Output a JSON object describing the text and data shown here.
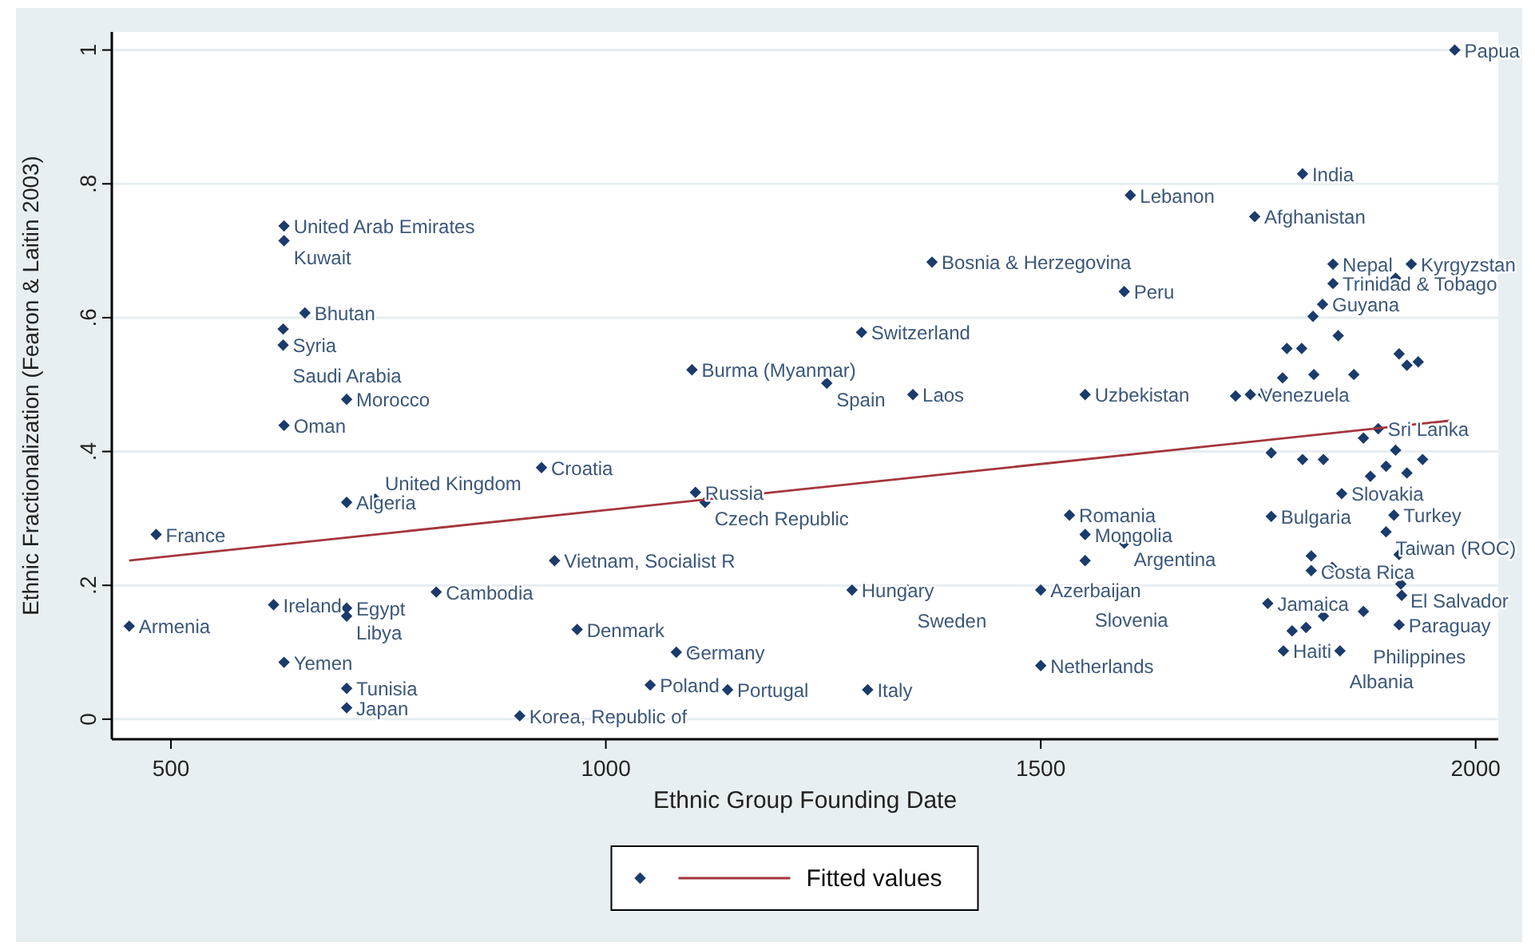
{
  "chart_data": {
    "type": "scatter",
    "xlabel": "Ethnic Group Founding Date",
    "ylabel": "Ethnic Fractionalization (Fearon & Laitin 2003)",
    "xlim": [
      432,
      2026
    ],
    "ylim": [
      -0.03,
      1.027
    ],
    "xticks": [
      500,
      1000,
      1500,
      2000
    ],
    "yticks": [
      0,
      {
        "value": 0.2,
        "label": ".2"
      },
      {
        "value": 0.4,
        "label": ".4"
      },
      {
        "value": 0.6,
        "label": ".6"
      },
      {
        "value": 0.8,
        "label": ".8"
      },
      1
    ],
    "grid": "y",
    "legend": "bottom",
    "series": [
      {
        "marker": "diamond",
        "color": "#1a3b6b",
        "x": [
          1976,
          1801,
          1603,
          1746,
          630,
          630,
          1375,
          1596,
          654,
          629,
          629,
          1294,
          1099,
          1254,
          1353,
          1551,
          702,
          630,
          926,
          702,
          735,
          483,
          1103,
          1114,
          941,
          805,
          618,
          702,
          702,
          452,
          967,
          630,
          1081,
          1103,
          1051,
          1140,
          702,
          702,
          901,
          1301,
          1283,
          1347,
          1500,
          1500,
          1533,
          1551,
          1596,
          1551,
          1836,
          1926,
          1836,
          1824,
          1765,
          1906,
          1897,
          1846,
          1811,
          1761,
          1914,
          1912,
          1871,
          1779,
          1844,
          1741,
          1888,
          1783,
          1800,
          1912,
          1934,
          1778,
          1814,
          1860,
          1724,
          1756,
          1921,
          1908,
          1801,
          1825,
          1879,
          1897,
          1921,
          1939,
          1908,
          1811,
          1835,
          1866,
          1915,
          1789,
          1805,
          1825,
          1912,
          1813,
          1842,
          1765,
          1871
        ],
        "values": [
          1.0,
          0.815,
          0.783,
          0.751,
          0.737,
          0.715,
          0.683,
          0.639,
          0.607,
          0.583,
          0.559,
          0.578,
          0.522,
          0.502,
          0.485,
          0.485,
          0.478,
          0.439,
          0.376,
          0.324,
          0.329,
          0.276,
          0.339,
          0.324,
          0.237,
          0.19,
          0.171,
          0.166,
          0.154,
          0.139,
          0.134,
          0.085,
          0.1,
          0.1,
          0.051,
          0.044,
          0.046,
          0.017,
          0.005,
          0.044,
          0.193,
          0.193,
          0.193,
          0.08,
          0.305,
          0.276,
          0.263,
          0.237,
          0.68,
          0.68,
          0.651,
          0.62,
          0.303,
          0.305,
          0.28,
          0.337,
          0.244,
          0.173,
          0.202,
          0.141,
          0.161,
          0.102,
          0.102,
          0.485,
          0.434,
          0.554,
          0.554,
          0.546,
          0.534,
          0.51,
          0.515,
          0.515,
          0.483,
          0.485,
          0.529,
          0.659,
          0.388,
          0.388,
          0.363,
          0.378,
          0.368,
          0.388,
          0.402,
          0.222,
          0.227,
          0.222,
          0.185,
          0.132,
          0.137,
          0.154,
          0.246,
          0.602,
          0.573,
          0.398,
          0.42
        ]
      },
      {
        "type": "line",
        "name": "Fitted values",
        "color": "#a5353c",
        "x": [
          452,
          1970
        ],
        "values": [
          0.237,
          0.446
        ]
      }
    ],
    "annotations": [
      {
        "text": "Papua",
        "x": 1976,
        "y": 1.0
      },
      {
        "text": "India",
        "x": 1801,
        "y": 0.815
      },
      {
        "text": "Lebanon",
        "x": 1603,
        "y": 0.783
      },
      {
        "text": "Afghanistan",
        "x": 1746,
        "y": 0.751
      },
      {
        "text": "United Arab Emirates",
        "x": 630,
        "y": 0.737
      },
      {
        "text": "Kuwait",
        "x": 630,
        "y": 0.715
      },
      {
        "text": "Bosnia & Herzegovina",
        "x": 1375,
        "y": 0.683
      },
      {
        "text": "Peru",
        "x": 1596,
        "y": 0.639
      },
      {
        "text": "Bhutan",
        "x": 654,
        "y": 0.607
      },
      {
        "text": "Syria",
        "x": 629,
        "y": 0.583
      },
      {
        "text": "Saudi Arabia",
        "x": 629,
        "y": 0.559
      },
      {
        "text": "Switzerland",
        "x": 1294,
        "y": 0.578
      },
      {
        "text": "Burma (Myanmar)",
        "x": 1099,
        "y": 0.522
      },
      {
        "text": "Spain",
        "x": 1254,
        "y": 0.502
      },
      {
        "text": "Laos",
        "x": 1353,
        "y": 0.485
      },
      {
        "text": "Uzbekistan",
        "x": 1551,
        "y": 0.485
      },
      {
        "text": "Morocco",
        "x": 702,
        "y": 0.478
      },
      {
        "text": "Oman",
        "x": 630,
        "y": 0.439
      },
      {
        "text": "Croatia",
        "x": 926,
        "y": 0.376
      },
      {
        "text": "Algeria",
        "x": 702,
        "y": 0.324
      },
      {
        "text": "United Kingdom",
        "x": 735,
        "y": 0.329
      },
      {
        "text": "France",
        "x": 483,
        "y": 0.276
      },
      {
        "text": "Russia",
        "x": 1103,
        "y": 0.339
      },
      {
        "text": "Czech Republic",
        "x": 1114,
        "y": 0.324
      },
      {
        "text": "Vietnam, Socialist R",
        "x": 941,
        "y": 0.237
      },
      {
        "text": "Cambodia",
        "x": 805,
        "y": 0.19
      },
      {
        "text": "Ireland",
        "x": 618,
        "y": 0.171
      },
      {
        "text": "Egypt",
        "x": 702,
        "y": 0.166
      },
      {
        "text": "Libya",
        "x": 702,
        "y": 0.154
      },
      {
        "text": "Armenia",
        "x": 452,
        "y": 0.139
      },
      {
        "text": "Denmark",
        "x": 967,
        "y": 0.134
      },
      {
        "text": "Yemen",
        "x": 630,
        "y": 0.085
      },
      {
        "text": "Germany",
        "x": 1081,
        "y": 0.1
      },
      {
        "text": "Poland",
        "x": 1051,
        "y": 0.051
      },
      {
        "text": "Portugal",
        "x": 1140,
        "y": 0.044
      },
      {
        "text": "Tunisia",
        "x": 702,
        "y": 0.046
      },
      {
        "text": "Japan",
        "x": 702,
        "y": 0.017
      },
      {
        "text": "Korea, Republic of",
        "x": 901,
        "y": 0.005
      },
      {
        "text": "Italy",
        "x": 1301,
        "y": 0.044
      },
      {
        "text": "Hungary",
        "x": 1283,
        "y": 0.193
      },
      {
        "text": "Sweden",
        "x": 1347,
        "y": 0.193
      },
      {
        "text": "Azerbaijan",
        "x": 1500,
        "y": 0.193
      },
      {
        "text": "Netherlands",
        "x": 1500,
        "y": 0.08
      },
      {
        "text": "Romania",
        "x": 1533,
        "y": 0.305
      },
      {
        "text": "Mongolia",
        "x": 1551,
        "y": 0.276
      },
      {
        "text": "Argentina",
        "x": 1596,
        "y": 0.263
      },
      {
        "text": "Slovenia",
        "x": 1551,
        "y": 0.237
      },
      {
        "text": "Nepal",
        "x": 1836,
        "y": 0.68
      },
      {
        "text": "Kyrgyzstan",
        "x": 1926,
        "y": 0.68
      },
      {
        "text": "Trinidad & Tobago",
        "x": 1836,
        "y": 0.651
      },
      {
        "text": "Guyana",
        "x": 1824,
        "y": 0.62
      },
      {
        "text": "Bulgaria",
        "x": 1765,
        "y": 0.303
      },
      {
        "text": "Turkey",
        "x": 1906,
        "y": 0.305
      },
      {
        "text": "Taiwan (ROC)",
        "x": 1897,
        "y": 0.28
      },
      {
        "text": "Slovakia",
        "x": 1846,
        "y": 0.337
      },
      {
        "text": "Costa Rica",
        "x": 1811,
        "y": 0.244
      },
      {
        "text": "Jamaica",
        "x": 1761,
        "y": 0.173
      },
      {
        "text": "El Salvador",
        "x": 1914,
        "y": 0.202
      },
      {
        "text": "Paraguay",
        "x": 1912,
        "y": 0.141
      },
      {
        "text": "Philippines",
        "x": 1871,
        "y": 0.161
      },
      {
        "text": "Haiti",
        "x": 1779,
        "y": 0.102
      },
      {
        "text": "Albania",
        "x": 1844,
        "y": 0.102
      },
      {
        "text": "Venezuela",
        "x": 1741,
        "y": 0.485
      },
      {
        "text": "Sri Lanka",
        "x": 1888,
        "y": 0.434
      }
    ]
  }
}
